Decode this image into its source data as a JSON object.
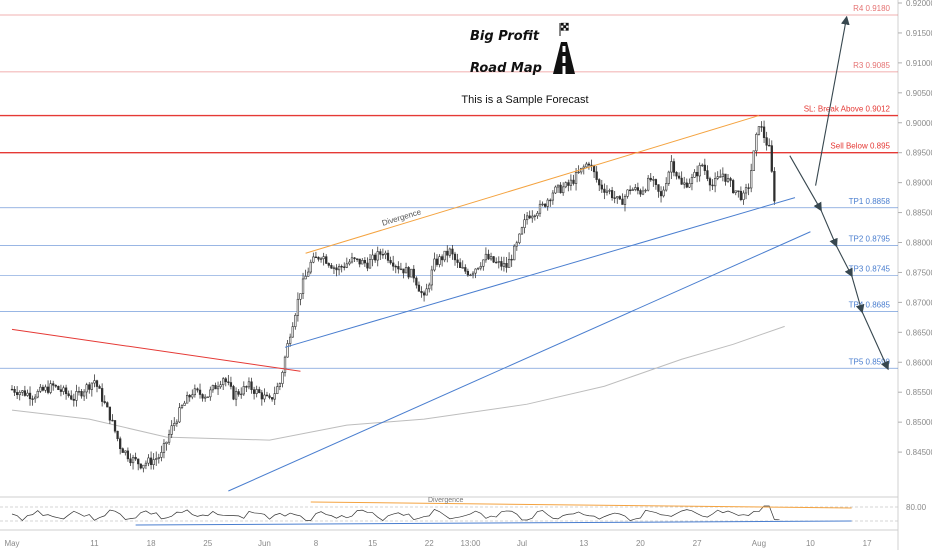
{
  "chart_data": {
    "type": "candlestick",
    "title_lines": [
      "Big Profit",
      "Road Map"
    ],
    "subtitle": "This is a Sample Forecast",
    "y_axis": {
      "range": [
        0.8375,
        0.9205
      ],
      "ticks": [
        "0.92000",
        "0.91500",
        "0.91000",
        "0.90500",
        "0.90000",
        "0.89500",
        "0.89000",
        "0.88500",
        "0.88000",
        "0.87500",
        "0.87000",
        "0.86500",
        "0.86000",
        "0.85500",
        "0.85000",
        "0.84500"
      ],
      "tick_values": [
        0.92,
        0.915,
        0.91,
        0.905,
        0.9,
        0.895,
        0.89,
        0.885,
        0.88,
        0.875,
        0.87,
        0.865,
        0.86,
        0.855,
        0.85,
        0.845
      ]
    },
    "x_axis": {
      "ticks": [
        "May",
        "11",
        "18",
        "25",
        "Jun",
        "8",
        "15",
        "22",
        "13:00",
        "Jul",
        "13",
        "20",
        "27",
        "Aug",
        "10",
        "17"
      ],
      "tick_index": [
        0,
        16,
        27,
        38,
        49,
        59,
        70,
        81,
        89,
        99,
        111,
        122,
        133,
        145,
        155,
        166
      ],
      "total_slots": 172
    },
    "levels": [
      {
        "label": "R4 0.9180",
        "value": 0.918,
        "color": "#e57373",
        "style": "thin"
      },
      {
        "label": "R3 0.9085",
        "value": 0.9085,
        "color": "#e57373",
        "style": "thin"
      },
      {
        "label": "SL: Break Above 0.9012",
        "value": 0.9012,
        "color": "#e53935",
        "style": "thick"
      },
      {
        "label": "Sell Below 0.895",
        "value": 0.895,
        "color": "#e53935",
        "style": "thick"
      },
      {
        "label": "TP1 0.8858",
        "value": 0.8858,
        "color": "#4a7ecf",
        "style": "thin"
      },
      {
        "label": "TP2 0.8795",
        "value": 0.8795,
        "color": "#4a7ecf",
        "style": "thin"
      },
      {
        "label": "TP3 0.8745",
        "value": 0.8745,
        "color": "#4a7ecf",
        "style": "thin"
      },
      {
        "label": "TP4 0.8685",
        "value": 0.8685,
        "color": "#4a7ecf",
        "style": "thin"
      },
      {
        "label": "TP5 0.8590",
        "value": 0.859,
        "color": "#4a7ecf",
        "style": "thin"
      }
    ],
    "annotations": [
      {
        "text": "Divergence",
        "panel": "price"
      },
      {
        "text": "Divergence",
        "panel": "rsi"
      }
    ],
    "rsi_axis": {
      "label": "80.00",
      "value": 80
    },
    "price_path": [
      [
        0,
        0.8555
      ],
      [
        4,
        0.8545
      ],
      [
        8,
        0.856
      ],
      [
        12,
        0.854
      ],
      [
        16,
        0.857
      ],
      [
        19,
        0.851
      ],
      [
        21,
        0.846
      ],
      [
        23,
        0.844
      ],
      [
        25,
        0.843
      ],
      [
        27,
        0.8435
      ],
      [
        29,
        0.8445
      ],
      [
        31,
        0.849
      ],
      [
        33,
        0.8525
      ],
      [
        35,
        0.855
      ],
      [
        38,
        0.8545
      ],
      [
        41,
        0.8575
      ],
      [
        43,
        0.8545
      ],
      [
        46,
        0.856
      ],
      [
        50,
        0.8535
      ],
      [
        52,
        0.8565
      ],
      [
        54,
        0.865
      ],
      [
        56,
        0.872
      ],
      [
        58,
        0.8765
      ],
      [
        60,
        0.878
      ],
      [
        63,
        0.8755
      ],
      [
        66,
        0.877
      ],
      [
        69,
        0.8765
      ],
      [
        72,
        0.8785
      ],
      [
        75,
        0.876
      ],
      [
        78,
        0.8745
      ],
      [
        80,
        0.8705
      ],
      [
        82,
        0.8765
      ],
      [
        85,
        0.8785
      ],
      [
        87,
        0.8755
      ],
      [
        89,
        0.875
      ],
      [
        92,
        0.8775
      ],
      [
        94,
        0.8765
      ],
      [
        96,
        0.876
      ],
      [
        98,
        0.8795
      ],
      [
        100,
        0.8845
      ],
      [
        103,
        0.886
      ],
      [
        105,
        0.8885
      ],
      [
        108,
        0.8895
      ],
      [
        110,
        0.8915
      ],
      [
        112,
        0.8935
      ],
      [
        114,
        0.8895
      ],
      [
        116,
        0.8885
      ],
      [
        118,
        0.8865
      ],
      [
        120,
        0.889
      ],
      [
        122,
        0.8885
      ],
      [
        124,
        0.8905
      ],
      [
        126,
        0.8875
      ],
      [
        128,
        0.8935
      ],
      [
        130,
        0.8895
      ],
      [
        132,
        0.8905
      ],
      [
        134,
        0.893
      ],
      [
        136,
        0.8895
      ],
      [
        138,
        0.8915
      ],
      [
        140,
        0.889
      ],
      [
        142,
        0.8875
      ],
      [
        143,
        0.8895
      ],
      [
        145,
        0.9
      ],
      [
        147,
        0.8955
      ],
      [
        148,
        0.8875
      ]
    ],
    "ma_path": [
      [
        0,
        0.852
      ],
      [
        15,
        0.8505
      ],
      [
        30,
        0.8475
      ],
      [
        50,
        0.847
      ],
      [
        65,
        0.8495
      ],
      [
        80,
        0.8505
      ],
      [
        100,
        0.853
      ],
      [
        115,
        0.856
      ],
      [
        130,
        0.8605
      ],
      [
        140,
        0.863
      ],
      [
        150,
        0.866
      ]
    ],
    "divergence_lines": {
      "price_upper": [
        [
          57,
          0.8782
        ],
        [
          145,
          0.9012
        ]
      ],
      "price_lower": [
        [
          53,
          0.8625
        ],
        [
          152,
          0.8875
        ]
      ],
      "support_long": [
        [
          42,
          0.8385
        ],
        [
          155,
          0.8818
        ]
      ],
      "downtrend": [
        [
          0,
          0.8655
        ],
        [
          56,
          0.8585
        ]
      ]
    },
    "forecast_arrow_up": [
      [
        156,
        0.8895
      ],
      [
        162,
        0.9175
      ]
    ],
    "forecast_path_down": [
      [
        151,
        0.8945
      ],
      [
        157,
        0.8855
      ],
      [
        160,
        0.8795
      ],
      [
        163,
        0.8745
      ],
      [
        165,
        0.8685
      ],
      [
        170,
        0.859
      ]
    ],
    "colors": {
      "up": "#2f2f2f",
      "down": "#2f2f2f",
      "resistance": "#e53935",
      "target": "#4a7ecf",
      "channel": "#f4a340",
      "ma": "#bdbdbd"
    }
  }
}
